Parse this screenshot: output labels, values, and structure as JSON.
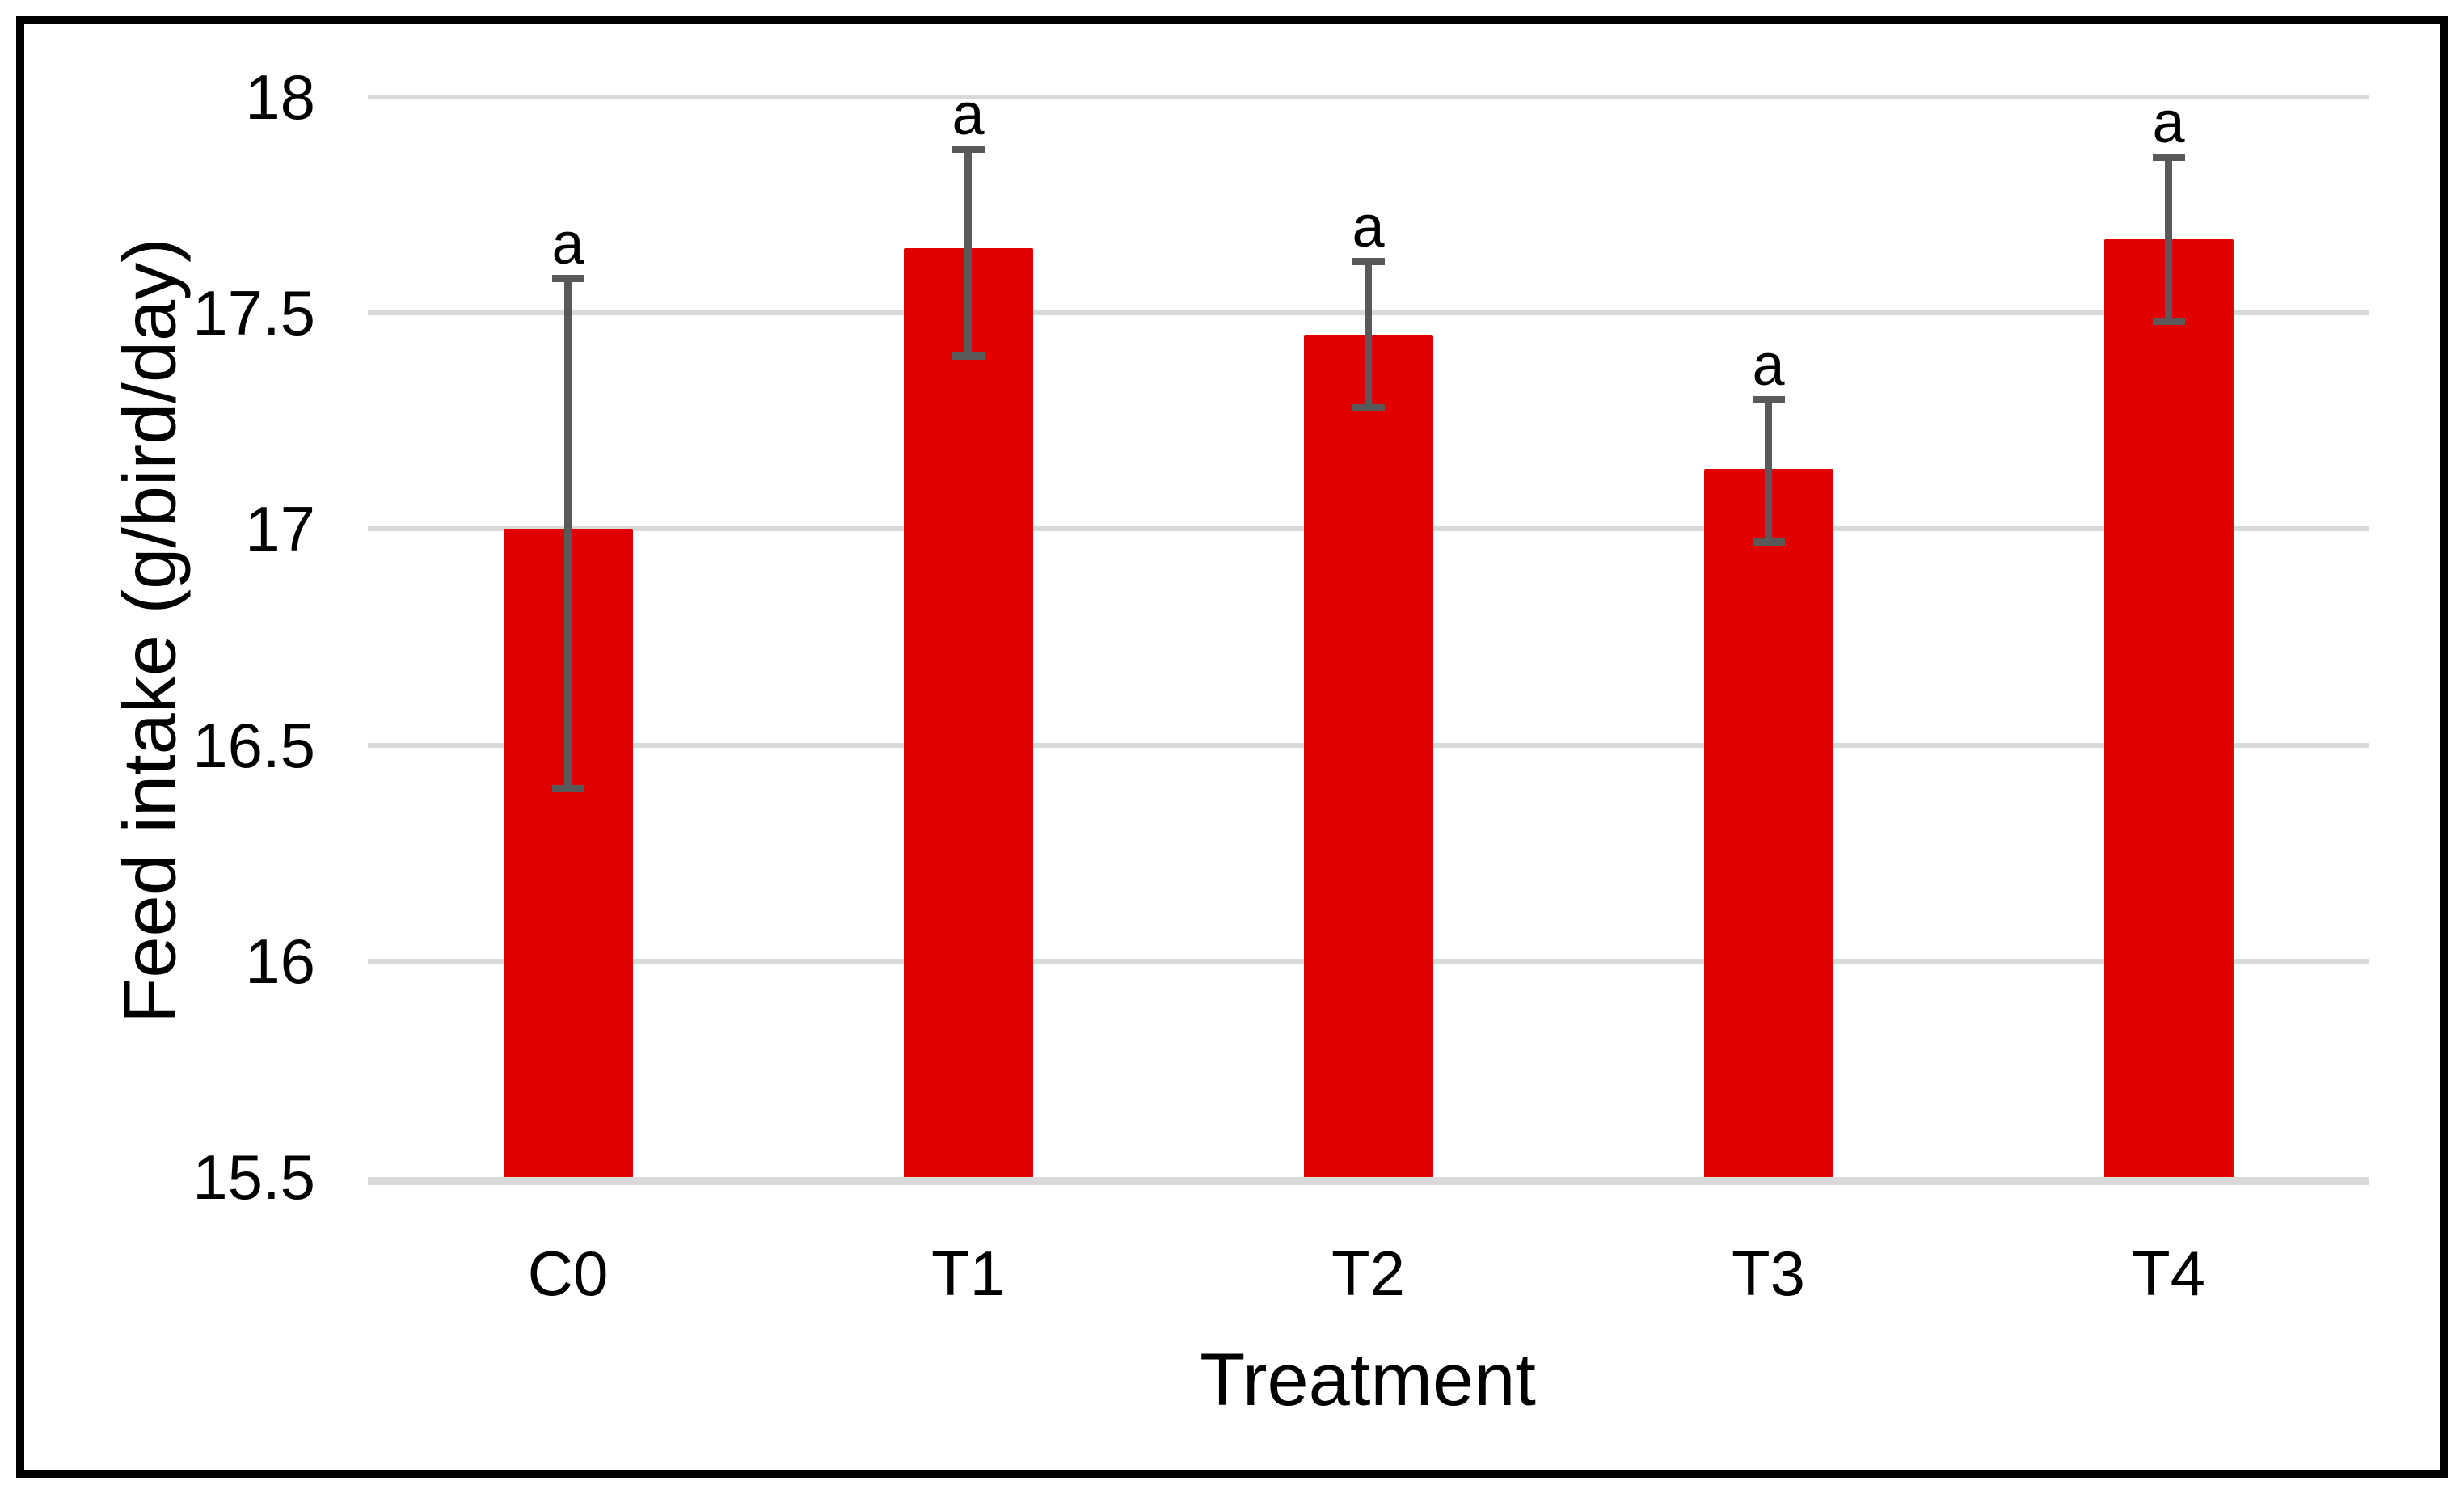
{
  "chart_data": {
    "type": "bar",
    "title": "",
    "xlabel": "Treatment",
    "ylabel": "Feed intake (g/bird/day)",
    "categories": [
      "C0",
      "T1",
      "T2",
      "T3",
      "T4"
    ],
    "values": [
      17.0,
      17.65,
      17.45,
      17.14,
      17.67
    ],
    "error_high": [
      17.58,
      17.88,
      17.62,
      17.3,
      17.86
    ],
    "error_low": [
      16.4,
      17.4,
      17.28,
      16.97,
      17.48
    ],
    "annotations": [
      "a",
      "a",
      "a",
      "a",
      "a"
    ],
    "ylim": [
      15.5,
      18
    ],
    "yticks": [
      18,
      17.5,
      17,
      16.5,
      16,
      15.5
    ],
    "grid": true,
    "legend_position": "none",
    "bar_color": "#e00000",
    "error_bar_color": "#595959",
    "gridline_color": "#d9d9d9",
    "axis_line_color": "#d9d9d9",
    "text_color": "#000000",
    "frame_color": "#000000"
  }
}
